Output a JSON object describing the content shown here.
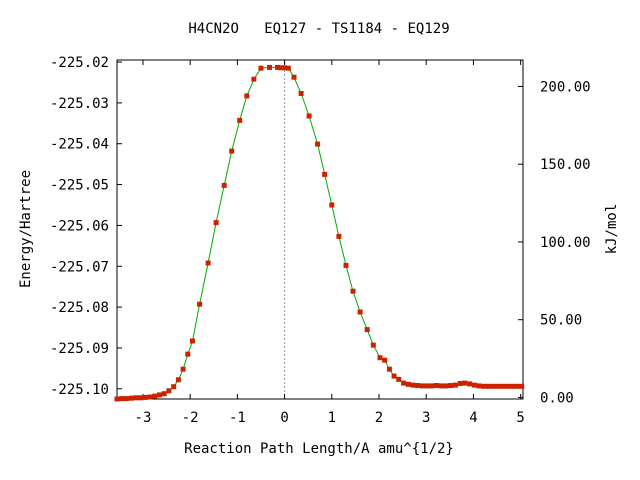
{
  "chart_data": {
    "type": "line",
    "title": "H4CN2O   EQ127 - TS1184 - EQ129",
    "xlabel": "Reaction Path Length/A amu^{1/2}",
    "ylabel": "Energy/Hartree",
    "y2label": "kJ/mol",
    "xlim": [
      -3.55,
      5.05
    ],
    "ylim": [
      -225.1025,
      -225.0195
    ],
    "y2lim": [
      -1.0,
      217.0
    ],
    "x_ticks": [
      -3,
      -2,
      -1,
      0,
      1,
      2,
      3,
      4,
      5
    ],
    "x_tick_labels": [
      "-3",
      "-2",
      "-1",
      "0",
      "1",
      "2",
      "3",
      "4",
      "5"
    ],
    "y_ticks": [
      -225.02,
      -225.03,
      -225.04,
      -225.05,
      -225.06,
      -225.07,
      -225.08,
      -225.09,
      -225.1
    ],
    "y_tick_labels": [
      "-225.02",
      "-225.03",
      "-225.04",
      "-225.05",
      "-225.06",
      "-225.07",
      "-225.08",
      "-225.09",
      "-225.10"
    ],
    "y2_ticks": [
      0,
      50,
      100,
      150,
      200
    ],
    "y2_tick_labels": [
      "0.00",
      "50.00",
      "100.00",
      "150.00",
      "200.00"
    ],
    "ts_marker_x": 0.0,
    "grid": false,
    "line_color": "#00aa00",
    "point_color": "#cc2200",
    "series": [
      {
        "x": [
          -3.55,
          -3.45,
          -3.35,
          -3.25,
          -3.15,
          -3.05,
          -2.95,
          -2.85,
          -2.75,
          -2.65,
          -2.55,
          -2.45,
          -2.35,
          -2.25,
          -2.15,
          -2.05,
          -1.95,
          -1.8,
          -1.62,
          -1.45,
          -1.28,
          -1.12,
          -0.95,
          -0.8,
          -0.65,
          -0.5,
          -0.32,
          -0.15,
          -0.08,
          0.0,
          0.08,
          0.2,
          0.35,
          0.52,
          0.7,
          0.85,
          1.0,
          1.15,
          1.3,
          1.45,
          1.6,
          1.75,
          1.88,
          2.02,
          2.12,
          2.22,
          2.32,
          2.42,
          2.52,
          2.62,
          2.72,
          2.82,
          2.92,
          3.02,
          3.12,
          3.22,
          3.32,
          3.42,
          3.52,
          3.62,
          3.72,
          3.82,
          3.92,
          4.02,
          4.12,
          4.22,
          4.32,
          4.42,
          4.52,
          4.62,
          4.72,
          4.82,
          4.92,
          5.02
        ],
        "y": [
          -225.1025,
          -225.1024,
          -225.1024,
          -225.1023,
          -225.1022,
          -225.1022,
          -225.1021,
          -225.102,
          -225.1018,
          -225.1015,
          -225.1012,
          -225.1005,
          -225.0995,
          -225.0978,
          -225.0952,
          -225.0915,
          -225.0883,
          -225.0793,
          -225.0692,
          -225.0593,
          -225.0502,
          -225.0418,
          -225.0343,
          -225.0283,
          -225.0242,
          -225.0215,
          -225.0213,
          -225.0213,
          -225.0214,
          -225.0214,
          -225.0215,
          -225.0237,
          -225.0277,
          -225.0332,
          -225.0401,
          -225.0475,
          -225.055,
          -225.0627,
          -225.0698,
          -225.0761,
          -225.0812,
          -225.0855,
          -225.0893,
          -225.0924,
          -225.093,
          -225.0952,
          -225.0969,
          -225.0977,
          -225.0986,
          -225.0989,
          -225.0991,
          -225.0992,
          -225.0993,
          -225.0993,
          -225.0993,
          -225.0992,
          -225.0993,
          -225.0993,
          -225.0992,
          -225.0991,
          -225.0987,
          -225.0986,
          -225.0988,
          -225.0991,
          -225.0993,
          -225.0994,
          -225.0994,
          -225.0994,
          -225.0994,
          -225.0994,
          -225.0994,
          -225.0994,
          -225.0994,
          -225.0994
        ]
      }
    ]
  }
}
